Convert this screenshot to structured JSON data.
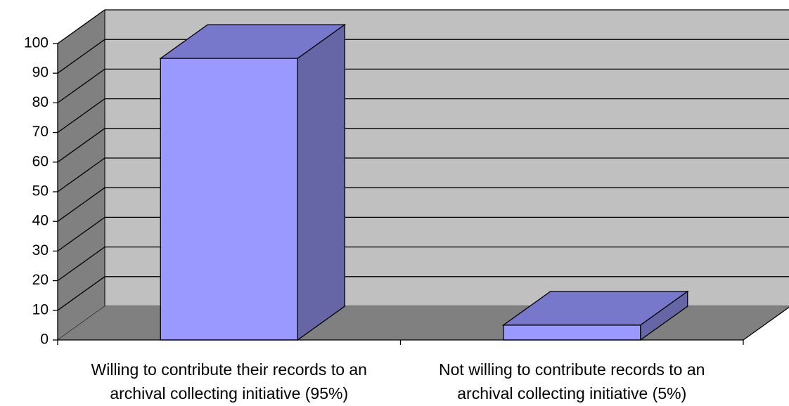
{
  "chart_data": {
    "type": "bar",
    "title": "",
    "xlabel": "",
    "ylabel": "",
    "categories": [
      [
        "Willing to contribute their records to an",
        "archival collecting initiative (95%)"
      ],
      [
        "Not willing to contribute records to an",
        "archival collecting initiative (5%)"
      ]
    ],
    "series": [
      {
        "values": [
          95,
          5
        ]
      }
    ],
    "ylim": [
      0,
      100
    ],
    "yticks": [
      0,
      10,
      20,
      30,
      40,
      50,
      60,
      70,
      80,
      90,
      100
    ],
    "grid": true,
    "legend": "none",
    "style": "3d-column",
    "colors": {
      "wall": "#c0c0c0",
      "floor": "#808080",
      "side_wall": "#808080",
      "bar_front": "#9999ff",
      "bar_top": "#7777cc",
      "bar_side": "#6666a6",
      "grid": "#000000",
      "axis": "#000000"
    }
  }
}
